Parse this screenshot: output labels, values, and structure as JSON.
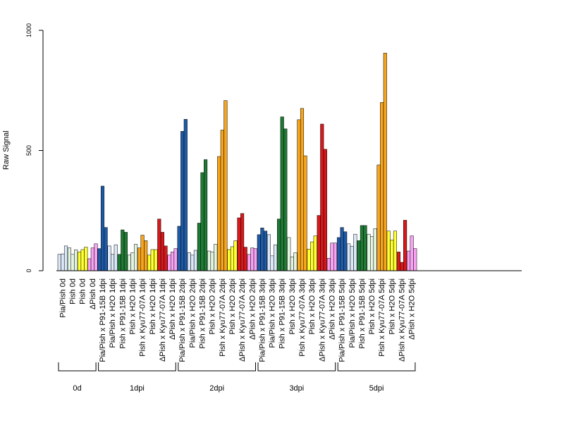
{
  "chart_data": {
    "type": "bar",
    "ylabel": "Raw Signal",
    "ylim": [
      0,
      1000
    ],
    "yticks": [
      0,
      500,
      1000
    ],
    "grid": false,
    "legend": "none",
    "categories": [
      "Pia/Pish 0d",
      "Pish 0d",
      "Pish 0d",
      "ΔPish 0d",
      "Pia/Pish x P91-15B 1dpi",
      "Pia/Pish x H2O 1dpi",
      "Pish x P91-15B 1dpi",
      "Pish x H2O 1dpi",
      "Pish x Kyu77-07A 1dpi",
      "Pish x H2O 1dpi",
      "ΔPish x Kyu77-07A 1dpi",
      "ΔPish x H2O 1dpi",
      "Pia/Pish x P91-15B 2dpi",
      "Pia/Pish x H2O 2dpi",
      "Pish x P91-15B 2dpi",
      "Pish x H2O 2dpi",
      "Pish x Kyu77-07A 2dpi",
      "Pish x H2O 2dpi",
      "ΔPish x Kyu77-07A 2dpi",
      "ΔPish x H2O 2dpi",
      "Pia/Pish x P91-15B 3dpi",
      "Pia/Pish x H2O 3dpi",
      "Pish x P91-15B 3dpi",
      "Pish x H2O 3dpi",
      "Pish x Kyu77-07A 3dpi",
      "Pish x H2O 3dpi",
      "ΔPish x Kyu77-07A 3dpi",
      "ΔPish x H2O 3dpi",
      "Pia/Pish x P91-15B 5dpi",
      "Pia/Pish x H2O 5dpi",
      "Pish x P91-15B 5dpi",
      "Pish x H2O 5dpi",
      "Pish x Kyu77-07A 5dpi",
      "Pish x H2O 5dpi",
      "ΔPish x Kyu77-07A 5dpi",
      "ΔPish x H2O 5dpi"
    ],
    "colors": [
      "#dbe8f7",
      "#e3f4e0",
      "#ffff33",
      "#f7a3f2",
      "#1f5aa6",
      "#dbe8f7",
      "#1e7a34",
      "#e3f4e0",
      "#f7a51d",
      "#ffff33",
      "#d7191c",
      "#f7a3f2",
      "#1f5aa6",
      "#dbe8f7",
      "#1e7a34",
      "#e3f4e0",
      "#f7a51d",
      "#ffff33",
      "#d7191c",
      "#f7a3f2",
      "#1f5aa6",
      "#dbe8f7",
      "#1e7a34",
      "#e3f4e0",
      "#f7a51d",
      "#ffff33",
      "#d7191c",
      "#f7a3f2",
      "#1f5aa6",
      "#dbe8f7",
      "#1e7a34",
      "#e3f4e0",
      "#f7a51d",
      "#ffff33",
      "#d7191c",
      "#f7a3f2"
    ],
    "values": [
      [
        68,
        70,
        103
      ],
      [
        95,
        68,
        87
      ],
      [
        78,
        88,
        98
      ],
      [
        50,
        95,
        112
      ],
      [
        92,
        352,
        180
      ],
      [
        103,
        68,
        108
      ],
      [
        68,
        170,
        160
      ],
      [
        65,
        75,
        110
      ],
      [
        95,
        148,
        125
      ],
      [
        65,
        88,
        88
      ],
      [
        215,
        160,
        103
      ],
      [
        65,
        78,
        92
      ],
      [
        185,
        580,
        630
      ],
      [
        75,
        65,
        85
      ],
      [
        198,
        408,
        462
      ],
      [
        82,
        78,
        110
      ],
      [
        475,
        585,
        708
      ],
      [
        88,
        100,
        125
      ],
      [
        220,
        238,
        98
      ],
      [
        68,
        95,
        92
      ],
      [
        150,
        178,
        165
      ],
      [
        150,
        62,
        108
      ],
      [
        215,
        640,
        590
      ],
      [
        138,
        58,
        75
      ],
      [
        628,
        675,
        478
      ],
      [
        90,
        120,
        145
      ],
      [
        230,
        610,
        505
      ],
      [
        52,
        115,
        115
      ],
      [
        138,
        180,
        162
      ],
      [
        112,
        102,
        152
      ],
      [
        125,
        188,
        188
      ],
      [
        152,
        142,
        175
      ],
      [
        440,
        700,
        905
      ],
      [
        165,
        128,
        165
      ],
      [
        78,
        35,
        210
      ],
      [
        82,
        145,
        92
      ]
    ],
    "groups": [
      {
        "label": "0d",
        "count": 4
      },
      {
        "label": "1dpi",
        "count": 8
      },
      {
        "label": "2dpi",
        "count": 8
      },
      {
        "label": "3dpi",
        "count": 8
      },
      {
        "label": "5dpi",
        "count": 8
      }
    ]
  }
}
